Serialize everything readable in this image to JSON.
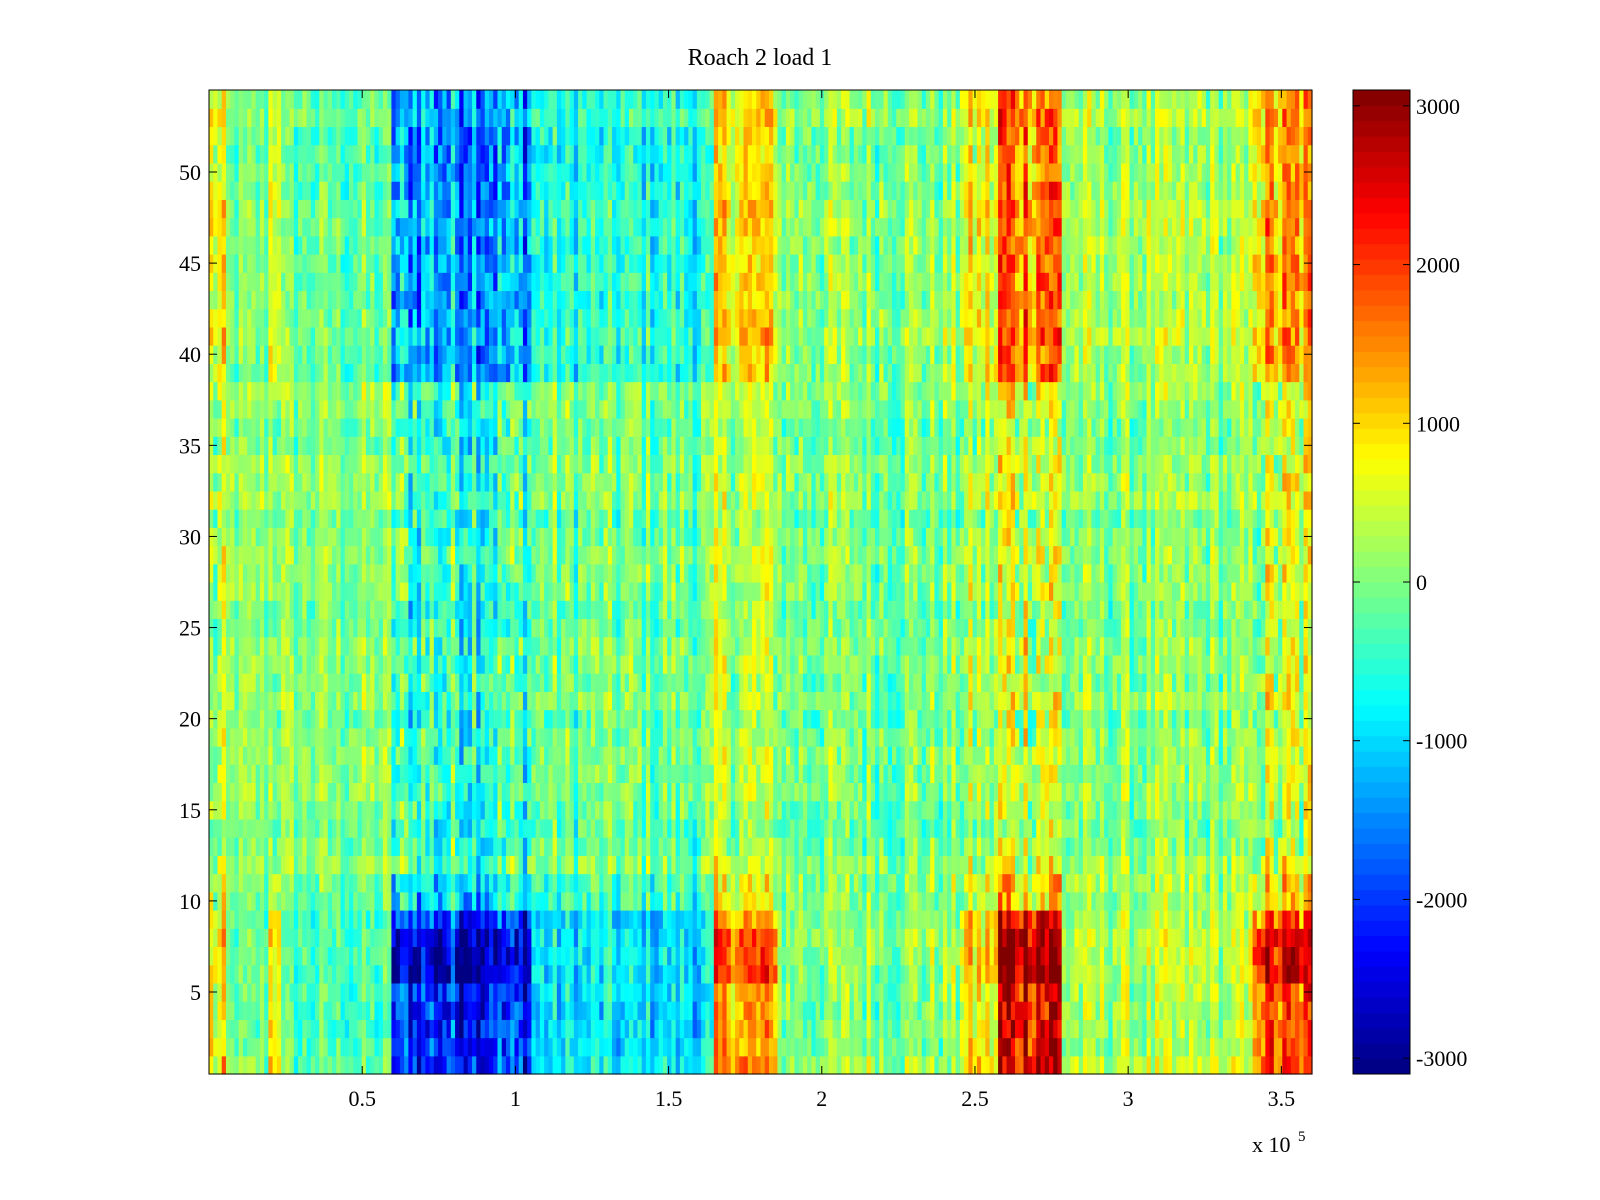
{
  "chart_data": {
    "type": "heatmap",
    "title": "Roach 2 load 1",
    "xlabel": "",
    "ylabel": "",
    "x_multiplier_label": "x 10",
    "x_multiplier_exponent": "5",
    "xlim": [
      0,
      3.6
    ],
    "ylim": [
      0.5,
      54.5
    ],
    "x_ticks": [
      0.5,
      1,
      1.5,
      2,
      2.5,
      3,
      3.5
    ],
    "x_tick_labels": [
      "0.5",
      "1",
      "1.5",
      "2",
      "2.5",
      "3",
      "3.5"
    ],
    "y_ticks": [
      5,
      10,
      15,
      20,
      25,
      30,
      35,
      40,
      45,
      50
    ],
    "y_tick_labels": [
      "5",
      "10",
      "15",
      "20",
      "25",
      "30",
      "35",
      "40",
      "45",
      "50"
    ],
    "rows": 54,
    "colormap": "jet",
    "colorbar": {
      "min": -3100,
      "max": 3100,
      "ticks": [
        3000,
        2000,
        1000,
        0,
        -1000,
        -2000,
        -3000
      ],
      "tick_labels": [
        "3000",
        "2000",
        "1000",
        "0",
        "-1000",
        "-2000",
        "-3000"
      ]
    },
    "column_segments": [
      {
        "x_start": 0.0,
        "x_end": 0.05,
        "base": 500,
        "amp": 1.6
      },
      {
        "x_start": 0.05,
        "x_end": 0.2,
        "base": -100,
        "amp": 1.0
      },
      {
        "x_start": 0.2,
        "x_end": 0.24,
        "base": 700,
        "amp": 1.2
      },
      {
        "x_start": 0.24,
        "x_end": 0.6,
        "base": -200,
        "amp": 1.1
      },
      {
        "x_start": 0.6,
        "x_end": 1.05,
        "base": -1300,
        "amp": 1.9
      },
      {
        "x_start": 1.05,
        "x_end": 1.65,
        "base": -600,
        "amp": 1.3
      },
      {
        "x_start": 1.65,
        "x_end": 1.85,
        "base": 900,
        "amp": 1.4
      },
      {
        "x_start": 1.85,
        "x_end": 2.45,
        "base": 100,
        "amp": 1.3
      },
      {
        "x_start": 2.45,
        "x_end": 2.58,
        "base": 600,
        "amp": 1.5
      },
      {
        "x_start": 2.58,
        "x_end": 2.78,
        "base": 1700,
        "amp": 2.0
      },
      {
        "x_start": 2.78,
        "x_end": 3.4,
        "base": 200,
        "amp": 1.2
      },
      {
        "x_start": 3.4,
        "x_end": 3.6,
        "base": 1200,
        "amp": 1.8
      }
    ],
    "row_bands": [
      {
        "y_start": 0.5,
        "y_end": 9.5,
        "gain": 1.5,
        "offset": 0
      },
      {
        "y_start": 9.5,
        "y_end": 11.5,
        "gain": 0.7,
        "offset": 0
      },
      {
        "y_start": 11.5,
        "y_end": 38.5,
        "gain": 0.35,
        "offset": 200
      },
      {
        "y_start": 38.5,
        "y_end": 54.5,
        "gain": 1.0,
        "offset": 0
      }
    ]
  }
}
